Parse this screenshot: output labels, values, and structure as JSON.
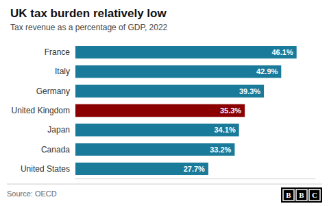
{
  "chart_data": {
    "type": "bar",
    "orientation": "horizontal",
    "title": "UK tax burden relatively low",
    "subtitle": "Tax revenue as a percentage of GDP, 2022",
    "source": "Source: OECD",
    "logo": [
      "B",
      "B",
      "C"
    ],
    "categories": [
      "France",
      "Italy",
      "Germany",
      "United Kingdom",
      "Japan",
      "Canada",
      "United States"
    ],
    "values": [
      46.1,
      42.9,
      39.3,
      35.3,
      34.1,
      33.2,
      27.7
    ],
    "value_labels": [
      "46.1%",
      "42.9%",
      "39.3%",
      "35.3%",
      "34.1%",
      "33.2%",
      "27.7%"
    ],
    "colors": [
      "#1a7a9a",
      "#1a7a9a",
      "#1a7a9a",
      "#8b0000",
      "#1a7a9a",
      "#1a7a9a",
      "#1a7a9a"
    ],
    "xlim": [
      0,
      50
    ],
    "data_labels": true,
    "tick_labels": "y",
    "grid": false
  }
}
